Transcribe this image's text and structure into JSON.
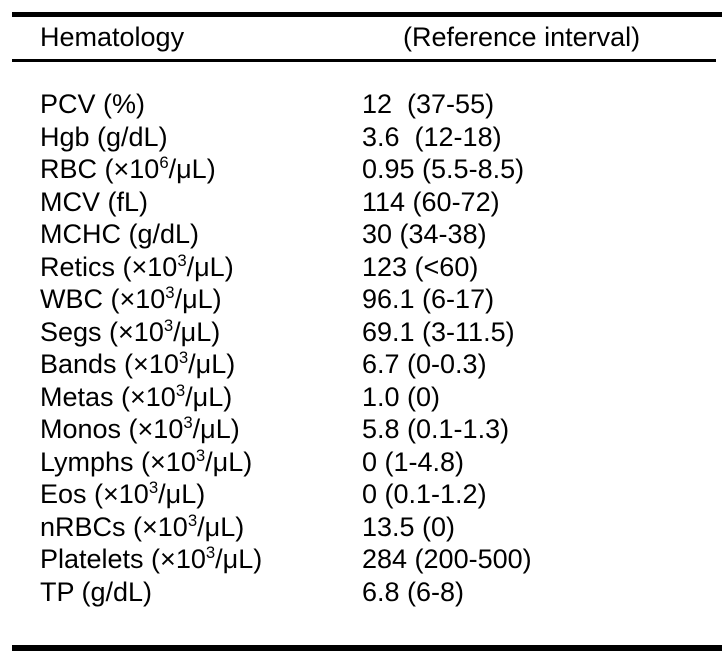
{
  "page": {
    "background": "#ffffff",
    "text_color": "#000000",
    "rule_color": "#000000"
  },
  "table": {
    "header": {
      "category": "Hematology",
      "reference": "(Reference interval)"
    },
    "rows": [
      {
        "label_pre": "PCV (%)",
        "label_sup": "",
        "label_post": "",
        "value": "12  (37-55)"
      },
      {
        "label_pre": "Hgb (g/dL)",
        "label_sup": "",
        "label_post": "",
        "value": "3.6  (12-18)"
      },
      {
        "label_pre": "RBC (×10",
        "label_sup": "6",
        "label_post": "/μL)",
        "value": "0.95 (5.5-8.5)"
      },
      {
        "label_pre": "MCV (fL)",
        "label_sup": "",
        "label_post": "",
        "value": "114 (60-72)"
      },
      {
        "label_pre": "MCHC (g/dL)",
        "label_sup": "",
        "label_post": "",
        "value": "30 (34-38)"
      },
      {
        "label_pre": "Retics (×10",
        "label_sup": "3",
        "label_post": "/μL)",
        "value": "123 (<60)"
      },
      {
        "label_pre": "WBC (×10",
        "label_sup": "3",
        "label_post": "/μL)",
        "value": "96.1 (6-17)"
      },
      {
        "label_pre": "Segs (×10",
        "label_sup": "3",
        "label_post": "/μL)",
        "value": "69.1 (3-11.5)"
      },
      {
        "label_pre": "Bands (×10",
        "label_sup": "3",
        "label_post": "/μL)",
        "value": "6.7 (0-0.3)"
      },
      {
        "label_pre": "Metas (×10",
        "label_sup": "3",
        "label_post": "/μL)",
        "value": "1.0 (0)"
      },
      {
        "label_pre": "Monos (×10",
        "label_sup": "3",
        "label_post": "/μL)",
        "value": "5.8 (0.1-1.3)"
      },
      {
        "label_pre": "Lymphs (×10",
        "label_sup": "3",
        "label_post": "/μL)",
        "value": "0 (1-4.8)"
      },
      {
        "label_pre": "Eos (×10",
        "label_sup": "3",
        "label_post": "/μL)",
        "value": "0 (0.1-1.2)"
      },
      {
        "label_pre": "nRBCs (×10",
        "label_sup": "3",
        "label_post": "/μL)",
        "value": "13.5 (0)"
      },
      {
        "label_pre": "Platelets (×10",
        "label_sup": "3",
        "label_post": "/μL)",
        "value": "284 (200-500)"
      },
      {
        "label_pre": "TP (g/dL)",
        "label_sup": "",
        "label_post": "",
        "value": "6.8 (6-8)"
      }
    ]
  }
}
